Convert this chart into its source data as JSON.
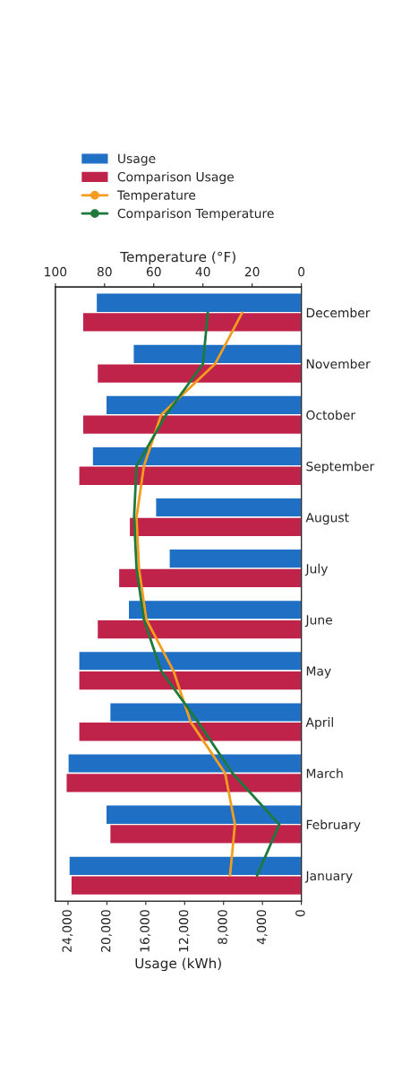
{
  "chart_data": {
    "type": "bar",
    "orientation": "horizontal",
    "xlabel": "Usage (kWh)",
    "x2label": "Temperature (°F)",
    "categories": [
      "December",
      "November",
      "October",
      "September",
      "August",
      "July",
      "June",
      "May",
      "April",
      "March",
      "February",
      "January"
    ],
    "series": [
      {
        "name": "Usage",
        "color": "#1f6fc5",
        "values": [
          21100,
          17300,
          20100,
          21500,
          15000,
          13600,
          17800,
          22900,
          19700,
          24000,
          20100,
          23900
        ]
      },
      {
        "name": "Comparison Usage",
        "color": "#c0234a",
        "values": [
          22500,
          21000,
          22500,
          22900,
          17700,
          18800,
          21000,
          22900,
          22900,
          24200,
          19700,
          23700
        ]
      },
      {
        "name": "Temperature",
        "type": "line",
        "axis": "x2",
        "color": "#f39c1e",
        "values": [
          24,
          35,
          57,
          64,
          67,
          66,
          63,
          52,
          45,
          31,
          27,
          29
        ]
      },
      {
        "name": "Comparison Temperature",
        "type": "line",
        "axis": "x2",
        "color": "#1e7a3c",
        "values": [
          38,
          40,
          55,
          67,
          68,
          67,
          64,
          57,
          42,
          28,
          9,
          18
        ]
      }
    ],
    "xlim": [
      25300,
      0
    ],
    "xticks": [
      {
        "value": 24000,
        "label": "24,000"
      },
      {
        "value": 20000,
        "label": "20,000"
      },
      {
        "value": 16000,
        "label": "16,000"
      },
      {
        "value": 12000,
        "label": "12,000"
      },
      {
        "value": 8000,
        "label": "8,000"
      },
      {
        "value": 4000,
        "label": "4,000"
      },
      0
    ],
    "x2lim": [
      100,
      0
    ],
    "x2ticks": [
      100,
      80,
      60,
      40,
      20,
      0
    ],
    "legend": "top"
  }
}
